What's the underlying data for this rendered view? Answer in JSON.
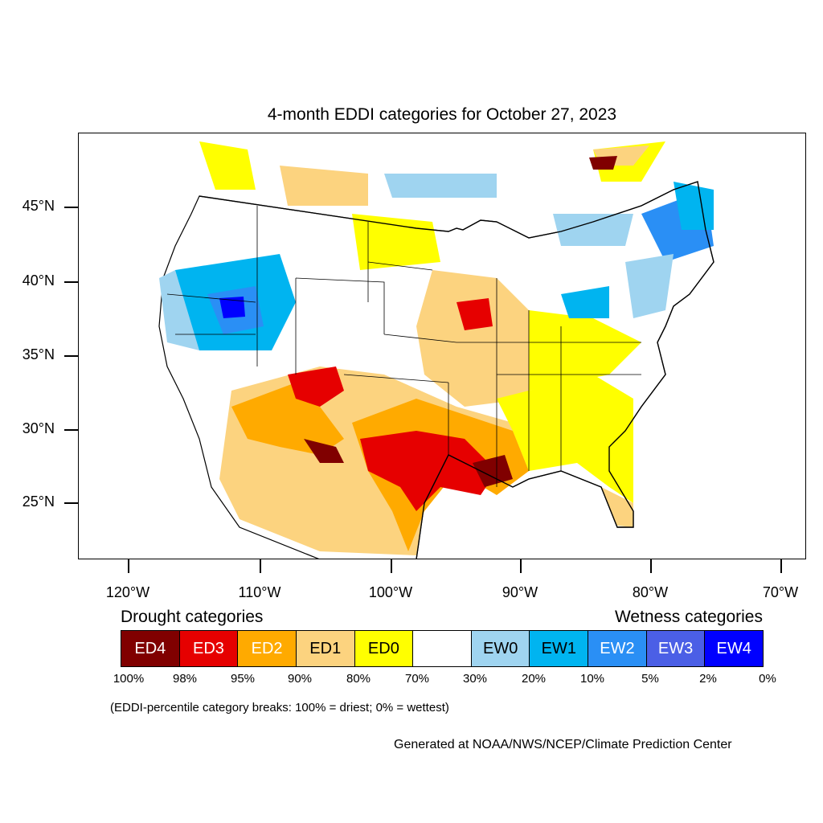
{
  "title": "4-month EDDI categories for October 27, 2023",
  "lat_labels": [
    "45°N",
    "40°N",
    "35°N",
    "30°N",
    "25°N"
  ],
  "lon_labels": [
    "120°W",
    "110°W",
    "100°W",
    "90°W",
    "80°W",
    "70°W"
  ],
  "legend": {
    "drought_label": "Drought categories",
    "wetness_label": "Wetness categories",
    "categories": [
      {
        "label": "ED4",
        "color": "#800000",
        "text_color": "#ffffff"
      },
      {
        "label": "ED3",
        "color": "#e60000",
        "text_color": "#ffffff"
      },
      {
        "label": "ED2",
        "color": "#ffaa00",
        "text_color": "#ffffff"
      },
      {
        "label": "ED1",
        "color": "#fcd37f",
        "text_color": "#000000"
      },
      {
        "label": "ED0",
        "color": "#ffff00",
        "text_color": "#000000"
      },
      {
        "label": "",
        "color": "#ffffff",
        "text_color": "#000000"
      },
      {
        "label": "EW0",
        "color": "#9fd4f0",
        "text_color": "#000000"
      },
      {
        "label": "EW1",
        "color": "#00b4f0",
        "text_color": "#000000"
      },
      {
        "label": "EW2",
        "color": "#2a8ff5",
        "text_color": "#ffffff"
      },
      {
        "label": "EW3",
        "color": "#4b5fe6",
        "text_color": "#ffffff"
      },
      {
        "label": "EW4",
        "color": "#0000ff",
        "text_color": "#ffffff"
      }
    ],
    "breaks": [
      "100%",
      "98%",
      "95%",
      "90%",
      "80%",
      "70%",
      "30%",
      "20%",
      "10%",
      "5%",
      "2%",
      "0%"
    ]
  },
  "note": "(EDDI-percentile category breaks: 100% = driest; 0% = wettest)",
  "credit": "Generated at NOAA/NWS/NCEP/Climate Prediction Center"
}
